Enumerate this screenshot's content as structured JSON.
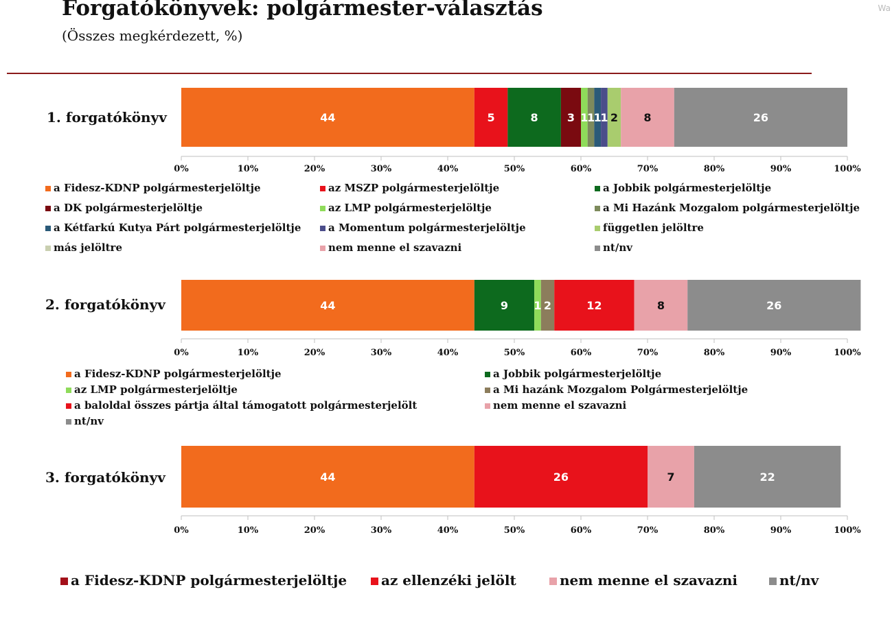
{
  "title": "Forgatókönyvek: polgármester-választás",
  "subtitle": "(Összes megkérdezett, %)",
  "corner_tag": "Wa",
  "chart_data": [
    {
      "type": "bar",
      "orientation": "horizontal-stacked",
      "row_label": "1. forgatókönyv",
      "xlim": [
        0,
        100
      ],
      "x_ticks": [
        "0%",
        "10%",
        "20%",
        "30%",
        "40%",
        "50%",
        "60%",
        "70%",
        "80%",
        "90%",
        "100%"
      ],
      "series": [
        {
          "name": "a Fidesz-KDNP polgármesterjelöltje",
          "value": 44,
          "label": "44",
          "color": "#f26b1d",
          "text_color": "#ffffff"
        },
        {
          "name": "az MSZP polgármesterjelöltje",
          "value": 5,
          "label": "5",
          "color": "#e8121b",
          "text_color": "#ffffff"
        },
        {
          "name": "a Jobbik polgármesterjelöltje",
          "value": 8,
          "label": "8",
          "color": "#0d6a1e",
          "text_color": "#ffffff"
        },
        {
          "name": "a DK polgármesterjelöltje",
          "value": 3,
          "label": "3",
          "color": "#7a0a10",
          "text_color": "#ffffff"
        },
        {
          "name": "az LMP polgármesterjelöltje",
          "value": 1,
          "label": "1",
          "color": "#8fdb5a",
          "text_color": "#ffffff"
        },
        {
          "name": "a Mi Hazánk Mozgalom polgármesterjelöltje",
          "value": 1,
          "label": "1",
          "color": "#7d8a5c",
          "text_color": "#ffffff"
        },
        {
          "name": "a Kétfarkú Kutya Párt polgármesterjelöltje",
          "value": 1,
          "label": "1",
          "color": "#2a5a78",
          "text_color": "#ffffff"
        },
        {
          "name": "a Momentum polgármesterjelöltje",
          "value": 1,
          "label": "1",
          "color": "#4b4d8a",
          "text_color": "#ffffff"
        },
        {
          "name": "független jelöltre",
          "value": 2,
          "label": "2",
          "color": "#a9cc6e",
          "text_color": "#111111"
        },
        {
          "name": "más jelöltre",
          "value": 0,
          "label": "0",
          "color": "#c9cfb0",
          "text_color": "#111111"
        },
        {
          "name": "nem menne el szavazni",
          "value": 8,
          "label": "8",
          "color": "#e8a2a9",
          "text_color": "#111111"
        },
        {
          "name": "nt/nv",
          "value": 26,
          "label": "26",
          "color": "#8c8c8c",
          "text_color": "#ffffff"
        }
      ]
    },
    {
      "type": "bar",
      "orientation": "horizontal-stacked",
      "row_label": "2. forgatókönyv",
      "xlim": [
        0,
        100
      ],
      "x_ticks": [
        "0%",
        "10%",
        "20%",
        "30%",
        "40%",
        "50%",
        "60%",
        "70%",
        "80%",
        "90%",
        "100%"
      ],
      "series": [
        {
          "name": "a Fidesz-KDNP polgármesterjelöltje",
          "value": 44,
          "label": "44",
          "color": "#f26b1d",
          "text_color": "#ffffff"
        },
        {
          "name": "a Jobbik polgármesterjelöltje",
          "value": 9,
          "label": "9",
          "color": "#0d6a1e",
          "text_color": "#ffffff"
        },
        {
          "name": "az LMP polgármesterjelöltje",
          "value": 1,
          "label": "1",
          "color": "#8fdb5a",
          "text_color": "#ffffff"
        },
        {
          "name": "a Mi hazánk Mozgalom Polgármesterjelöltje",
          "value": 2,
          "label": "2",
          "color": "#8c7d5c",
          "text_color": "#ffffff"
        },
        {
          "name": "a baloldal összes pártja által támogatott polgármesterjelölt",
          "value": 12,
          "label": "12",
          "color": "#e8121b",
          "text_color": "#ffffff"
        },
        {
          "name": "nem menne el szavazni",
          "value": 8,
          "label": "8",
          "color": "#e8a2a9",
          "text_color": "#111111"
        },
        {
          "name": "nt/nv",
          "value": 26,
          "label": "26",
          "color": "#8c8c8c",
          "text_color": "#ffffff"
        }
      ]
    },
    {
      "type": "bar",
      "orientation": "horizontal-stacked",
      "row_label": "3. forgatókönyv",
      "xlim": [
        0,
        100
      ],
      "x_ticks": [
        "0%",
        "10%",
        "20%",
        "30%",
        "40%",
        "50%",
        "60%",
        "70%",
        "80%",
        "90%",
        "100%"
      ],
      "series": [
        {
          "name": "a Fidesz-KDNP polgármesterjelöltje",
          "value": 44,
          "label": "44",
          "color": "#f26b1d",
          "text_color": "#ffffff"
        },
        {
          "name": "az ellenzéki jelölt",
          "value": 26,
          "label": "26",
          "color": "#e8121b",
          "text_color": "#ffffff"
        },
        {
          "name": "nem menne el szavazni",
          "value": 7,
          "label": "7",
          "color": "#e8a2a9",
          "text_color": "#111111"
        },
        {
          "name": "nt/nv",
          "value": 22,
          "label": "22",
          "color": "#8c8c8c",
          "text_color": "#ffffff"
        }
      ]
    }
  ],
  "legends": [
    {
      "columns": 3,
      "items": [
        {
          "label": "a Fidesz-KDNP polgármesterjelöltje",
          "color": "#f26b1d"
        },
        {
          "label": "az MSZP polgármesterjelöltje",
          "color": "#e8121b"
        },
        {
          "label": "a Jobbik polgármesterjelöltje",
          "color": "#0d6a1e"
        },
        {
          "label": "a DK polgármesterjelöltje",
          "color": "#7a0a10"
        },
        {
          "label": "az LMP polgármesterjelöltje",
          "color": "#8fdb5a"
        },
        {
          "label": "a Mi Hazánk Mozgalom polgármesterjelöltje",
          "color": "#7d8a5c"
        },
        {
          "label": "a Kétfarkú Kutya Párt polgármesterjelöltje",
          "color": "#2a5a78"
        },
        {
          "label": "a Momentum polgármesterjelöltje",
          "color": "#4b4d8a"
        },
        {
          "label": "független jelöltre",
          "color": "#a9cc6e"
        },
        {
          "label": "más jelöltre",
          "color": "#c9cfb0"
        },
        {
          "label": "nem menne el szavazni",
          "color": "#e8a2a9"
        },
        {
          "label": "nt/nv",
          "color": "#8c8c8c"
        }
      ]
    },
    {
      "columns": 2,
      "items": [
        {
          "label": "a Fidesz-KDNP polgármesterjelöltje",
          "color": "#f26b1d"
        },
        {
          "label": "a Jobbik polgármesterjelöltje",
          "color": "#0d6a1e"
        },
        {
          "label": "az LMP polgármesterjelöltje",
          "color": "#8fdb5a"
        },
        {
          "label": "a Mi hazánk Mozgalom Polgármesterjelöltje",
          "color": "#8c7d5c"
        },
        {
          "label": "a baloldal összes pártja által támogatott polgármesterjelölt",
          "color": "#e8121b"
        },
        {
          "label": "nem menne el szavazni",
          "color": "#e8a2a9"
        },
        {
          "label": "nt/nv",
          "color": "#8c8c8c"
        }
      ]
    },
    {
      "columns": 4,
      "items": [
        {
          "label": "a Fidesz-KDNP polgármesterjelöltje",
          "color": "#a3101a"
        },
        {
          "label": "az ellenzéki jelölt",
          "color": "#e8121b"
        },
        {
          "label": "nem menne el szavazni",
          "color": "#e8a2a9"
        },
        {
          "label": "nt/nv",
          "color": "#8c8c8c"
        }
      ]
    }
  ]
}
